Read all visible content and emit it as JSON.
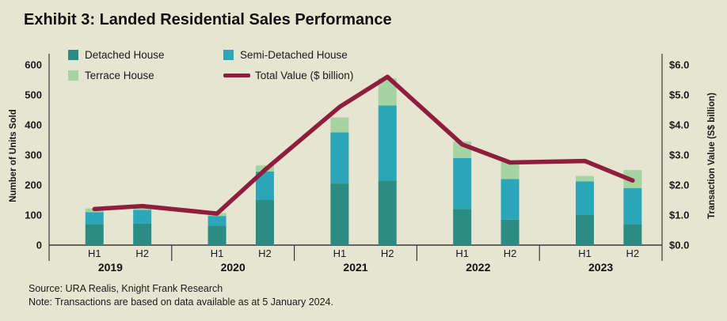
{
  "source": "Source: URA Realis, Knight Frank Research",
  "note": "Note: Transactions are based on data available as at 5 January 2024.",
  "colors": {
    "background": "#e6e5d1",
    "text": "#1a1a1a",
    "detached": "#2b8c84",
    "semi_detached": "#2ba7b9",
    "terrace": "#a5d3a2",
    "total_value_line": "#8e1e3c"
  },
  "chart_data": {
    "type": "bar+line",
    "title": "Exhibit 3: Landed Residential Sales Performance",
    "categories": [
      "H1",
      "H2",
      "H1",
      "H2",
      "H1",
      "H2",
      "H1",
      "H2",
      "H1",
      "H2"
    ],
    "year_groups": [
      "2019",
      "2020",
      "2021",
      "2022",
      "2023"
    ],
    "series": [
      {
        "name": "Detached House",
        "color": "#2b8c84",
        "values": [
          70,
          72,
          65,
          150,
          205,
          215,
          120,
          85,
          100,
          70
        ]
      },
      {
        "name": "Semi-Detached House",
        "color": "#2ba7b9",
        "values": [
          40,
          45,
          32,
          95,
          170,
          250,
          170,
          135,
          112,
          120
        ]
      },
      {
        "name": "Terrace House",
        "color": "#a5d3a2",
        "values": [
          12,
          10,
          10,
          20,
          50,
          90,
          55,
          60,
          18,
          60
        ]
      }
    ],
    "line": {
      "name": "Total Value ($ billion)",
      "color": "#8e1e3c",
      "values": [
        1.2,
        1.3,
        1.05,
        2.5,
        4.6,
        5.6,
        3.35,
        2.75,
        2.8,
        2.15
      ]
    },
    "ylabel_left": "Number of Units Sold",
    "ylabel_right": "Transaction Value (S$ billion)",
    "ylim_left": [
      0,
      600
    ],
    "ylim_right": [
      0,
      6
    ],
    "yticks_left": [
      "0",
      "100",
      "200",
      "300",
      "400",
      "500",
      "600"
    ],
    "yticks_right": [
      "$0.0",
      "$1.0",
      "$2.0",
      "$3.0",
      "$4.0",
      "$5.0",
      "$6.0"
    ],
    "grid": false,
    "legend_position": "top-left-inside"
  }
}
